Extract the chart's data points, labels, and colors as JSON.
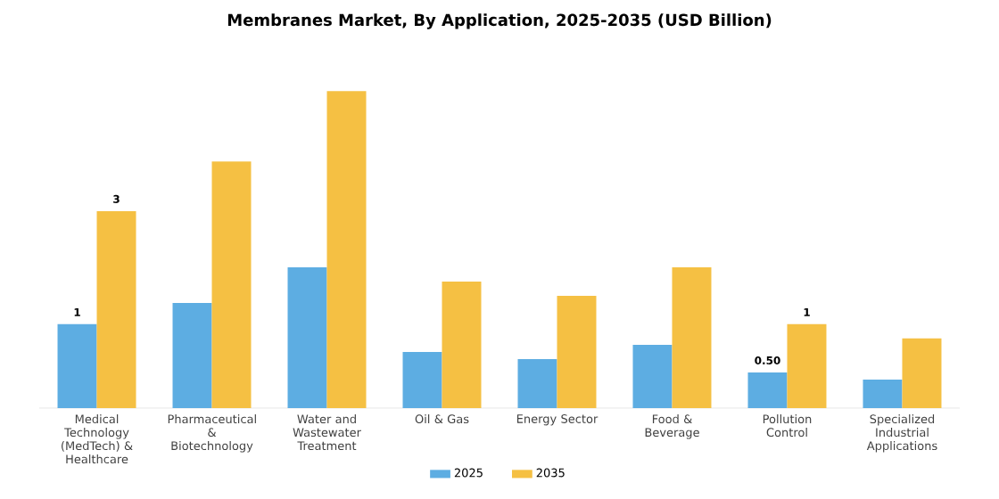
{
  "chart_data": {
    "type": "bar",
    "title": "Membranes Market, By Application, 2025-2035 (USD Billion)",
    "categories": [
      "Medical Technology (MedTech) & Healthcare",
      "Pharmaceutical & Biotechnology",
      "Water and Wastewater Treatment",
      "Oil & Gas",
      "Energy Sector",
      "Food & Beverage",
      "Pollution Control",
      "Specialized Industrial Applications"
    ],
    "series": [
      {
        "name": "2025",
        "color": "#5dade2",
        "values": [
          1.18,
          1.48,
          1.98,
          0.79,
          0.69,
          0.89,
          0.5,
          0.4
        ],
        "value_labels": [
          "1",
          null,
          null,
          null,
          null,
          null,
          "0.50",
          null
        ]
      },
      {
        "name": "2035",
        "color": "#f5c043",
        "values": [
          2.77,
          3.47,
          4.46,
          1.78,
          1.58,
          1.98,
          1.18,
          0.98
        ],
        "value_labels": [
          "3",
          null,
          null,
          null,
          null,
          null,
          "1",
          null
        ]
      }
    ],
    "legend": "bottom"
  }
}
